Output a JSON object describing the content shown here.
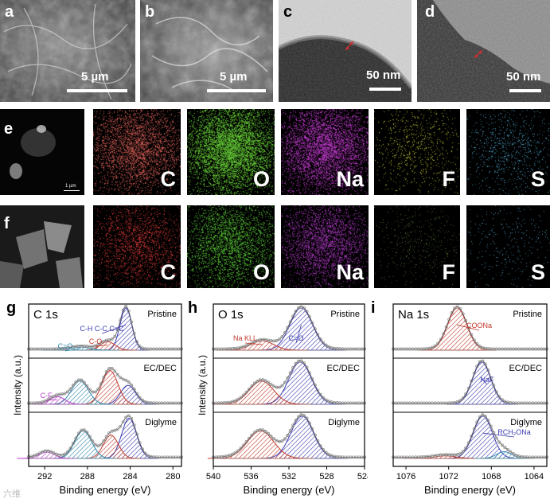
{
  "row1": {
    "a": {
      "letter": "a",
      "scale": "5 µm"
    },
    "b": {
      "letter": "b",
      "scale": "5 µm"
    },
    "c": {
      "letter": "c",
      "scale": "50 nm"
    },
    "d": {
      "letter": "d",
      "scale": "50 nm"
    }
  },
  "row_e": {
    "letter": "e",
    "scale": "1 µm",
    "maps": [
      {
        "element": "C",
        "color": "#e0625a"
      },
      {
        "element": "O",
        "color": "#6ee03a"
      },
      {
        "element": "Na",
        "color": "#c93cd6"
      },
      {
        "element": "F",
        "color": "#d6d83a"
      },
      {
        "element": "S",
        "color": "#58b6e0"
      }
    ]
  },
  "row_f": {
    "letter": "f",
    "maps": [
      {
        "element": "C",
        "color": "#e03a3a"
      },
      {
        "element": "O",
        "color": "#5ed63a"
      },
      {
        "element": "Na",
        "color": "#b33ac9"
      },
      {
        "element": "F",
        "color": "#5a7a3a"
      },
      {
        "element": "S",
        "color": "#58a8d0"
      }
    ]
  },
  "chart_data": [
    {
      "type": "line",
      "panel": "g",
      "title": "C 1s",
      "xlabel": "Binding energy (eV)",
      "ylabel": "Intensity (a.u.)",
      "xlim": [
        293.5,
        279.2
      ],
      "xticks": [
        292,
        288,
        284,
        280
      ],
      "series": [
        {
          "name": "Pristine",
          "peaks": [
            {
              "label": "C-H C-C C=C",
              "x": 284.4,
              "h": 1.0,
              "w": 0.55,
              "color": "#3b3bb0"
            },
            {
              "label": "C-O",
              "x": 286.1,
              "h": 0.2,
              "w": 0.7,
              "color": "#c0392b"
            },
            {
              "label": "C=O",
              "x": 288.6,
              "h": 0.07,
              "w": 0.9,
              "color": "#2e86ab"
            }
          ]
        },
        {
          "name": "EC/DEC",
          "peaks": [
            {
              "label": "",
              "x": 284.2,
              "h": 0.45,
              "w": 0.7,
              "color": "#3b3bb0"
            },
            {
              "label": "",
              "x": 285.9,
              "h": 0.8,
              "w": 0.75,
              "color": "#c0392b"
            },
            {
              "label": "",
              "x": 288.7,
              "h": 0.55,
              "w": 0.8,
              "color": "#2e86ab"
            },
            {
              "label": "C-F",
              "x": 290.8,
              "h": 0.18,
              "w": 0.7,
              "color": "#b43cc8"
            }
          ]
        },
        {
          "name": "Diglyme",
          "peaks": [
            {
              "label": "",
              "x": 284.1,
              "h": 0.95,
              "w": 0.7,
              "color": "#3b3bb0"
            },
            {
              "label": "",
              "x": 285.8,
              "h": 0.55,
              "w": 0.7,
              "color": "#c0392b"
            },
            {
              "label": "",
              "x": 288.4,
              "h": 0.65,
              "w": 0.8,
              "color": "#2e86ab"
            },
            {
              "label": "",
              "x": 291.8,
              "h": 0.15,
              "w": 0.7,
              "color": "#b43cc8"
            }
          ]
        }
      ]
    },
    {
      "type": "line",
      "panel": "h",
      "title": "O 1s",
      "xlabel": "Binding energy (eV)",
      "ylabel": "Intensity (a.u.)",
      "xlim": [
        540,
        524
      ],
      "xticks": [
        540,
        536,
        532,
        528,
        524
      ],
      "series": [
        {
          "name": "Pristine",
          "peaks": [
            {
              "label": "C=O",
              "x": 530.7,
              "h": 1.0,
              "w": 1.2,
              "color": "#3b3bb0"
            },
            {
              "label": "Na KLL",
              "x": 534.8,
              "h": 0.22,
              "w": 1.2,
              "color": "#c0392b"
            }
          ]
        },
        {
          "name": "EC/DEC",
          "peaks": [
            {
              "label": "",
              "x": 530.8,
              "h": 1.0,
              "w": 1.2,
              "color": "#3b3bb0"
            },
            {
              "label": "",
              "x": 534.9,
              "h": 0.55,
              "w": 1.3,
              "color": "#c0392b"
            }
          ]
        },
        {
          "name": "Diglyme",
          "peaks": [
            {
              "label": "",
              "x": 530.6,
              "h": 1.0,
              "w": 1.2,
              "color": "#3b3bb0"
            },
            {
              "label": "",
              "x": 535.0,
              "h": 0.65,
              "w": 1.4,
              "color": "#c0392b"
            }
          ]
        }
      ]
    },
    {
      "type": "line",
      "panel": "i",
      "title": "Na 1s",
      "xlabel": "Binding energy (eV)",
      "ylabel": "",
      "xlim": [
        1077.2,
        1062.8
      ],
      "xticks": [
        1076,
        1072,
        1068,
        1064
      ],
      "series": [
        {
          "name": "Pristine",
          "peaks": [
            {
              "label": "COONa",
              "x": 1071.2,
              "h": 1.0,
              "w": 0.9,
              "color": "#c0392b"
            }
          ]
        },
        {
          "name": "EC/DEC",
          "peaks": [
            {
              "label": "NaF",
              "x": 1068.9,
              "h": 1.0,
              "w": 0.85,
              "color": "#3b3bb0"
            }
          ]
        },
        {
          "name": "Diglyme",
          "peaks": [
            {
              "label": "RCH₂ONa",
              "x": 1068.8,
              "h": 1.0,
              "w": 0.9,
              "color": "#3b3bb0"
            },
            {
              "label": "",
              "x": 1072.3,
              "h": 0.06,
              "w": 1.0,
              "color": "#c0392b"
            },
            {
              "label": "",
              "x": 1066.8,
              "h": 0.16,
              "w": 0.7,
              "color": "#2e86ab"
            }
          ]
        }
      ]
    }
  ],
  "watermark": "六维"
}
